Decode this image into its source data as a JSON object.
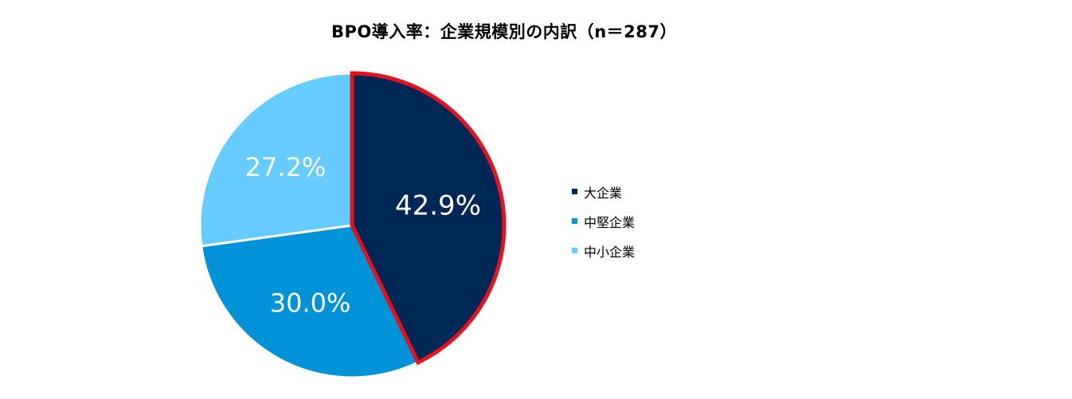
{
  "chart_data": {
    "type": "pie",
    "title": "BPO導入率：企業規模別の内訳（n＝287）",
    "categories": [
      "大企業",
      "中堅企業",
      "中小企業"
    ],
    "values": [
      42.9,
      30.0,
      27.2
    ],
    "labels": [
      "42.9%",
      "30.0%",
      "27.2%"
    ],
    "colors": [
      "#002856",
      "#0093D7",
      "#66CCFF"
    ],
    "highlight": {
      "category": "大企業",
      "outline_color": "#E8101A"
    },
    "start_angle_deg": 0,
    "direction": "clockwise",
    "legend_position": "right"
  }
}
